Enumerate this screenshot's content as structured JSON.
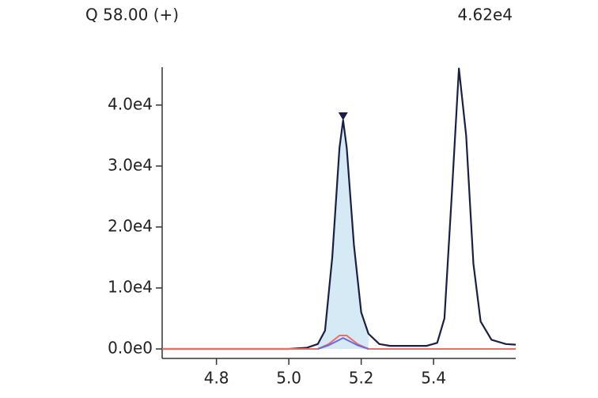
{
  "chart_data": {
    "type": "line",
    "title": "Q 58.00 (+)",
    "max_label": "4.62e4",
    "xlim": [
      4.65,
      5.627
    ],
    "ylim": [
      0,
      46200
    ],
    "xticks": [
      4.8,
      {
        "value": 5,
        "label": "5.0"
      },
      5.2,
      5.4
    ],
    "yticks": [
      {
        "value": 0,
        "label": "0.0e0"
      },
      {
        "value": 10000,
        "label": "1.0e4"
      },
      {
        "value": 20000,
        "label": "2.0e4"
      },
      {
        "value": 30000,
        "label": "3.0e4"
      },
      {
        "value": 40000,
        "label": "4.0e4"
      }
    ],
    "series": [
      {
        "color": "#1b1f45",
        "x": [
          4.65,
          5.0,
          5.05,
          5.08,
          5.1,
          5.12,
          5.14,
          5.15,
          5.16,
          5.18,
          5.2,
          5.22,
          5.25,
          5.28,
          5.38,
          5.41,
          5.43,
          5.45,
          5.47,
          5.49,
          5.51,
          5.53,
          5.56,
          5.6,
          5.627
        ],
        "values": [
          0,
          0,
          200,
          800,
          3000,
          15000,
          33000,
          37500,
          33000,
          17000,
          6000,
          2500,
          800,
          500,
          500,
          1000,
          5000,
          25000,
          46000,
          35000,
          14000,
          4500,
          1500,
          800,
          700
        ]
      },
      {
        "color": "#e8706a",
        "x": [
          4.65,
          5.08,
          5.11,
          5.14,
          5.16,
          5.19,
          5.22,
          5.627
        ],
        "values": [
          0,
          0,
          800,
          2200,
          2200,
          800,
          0,
          0
        ]
      },
      {
        "color": "#6a6ae0",
        "x": [
          5.08,
          5.11,
          5.15,
          5.19,
          5.22
        ],
        "values": [
          0,
          600,
          1800,
          600,
          0
        ]
      }
    ]
  }
}
